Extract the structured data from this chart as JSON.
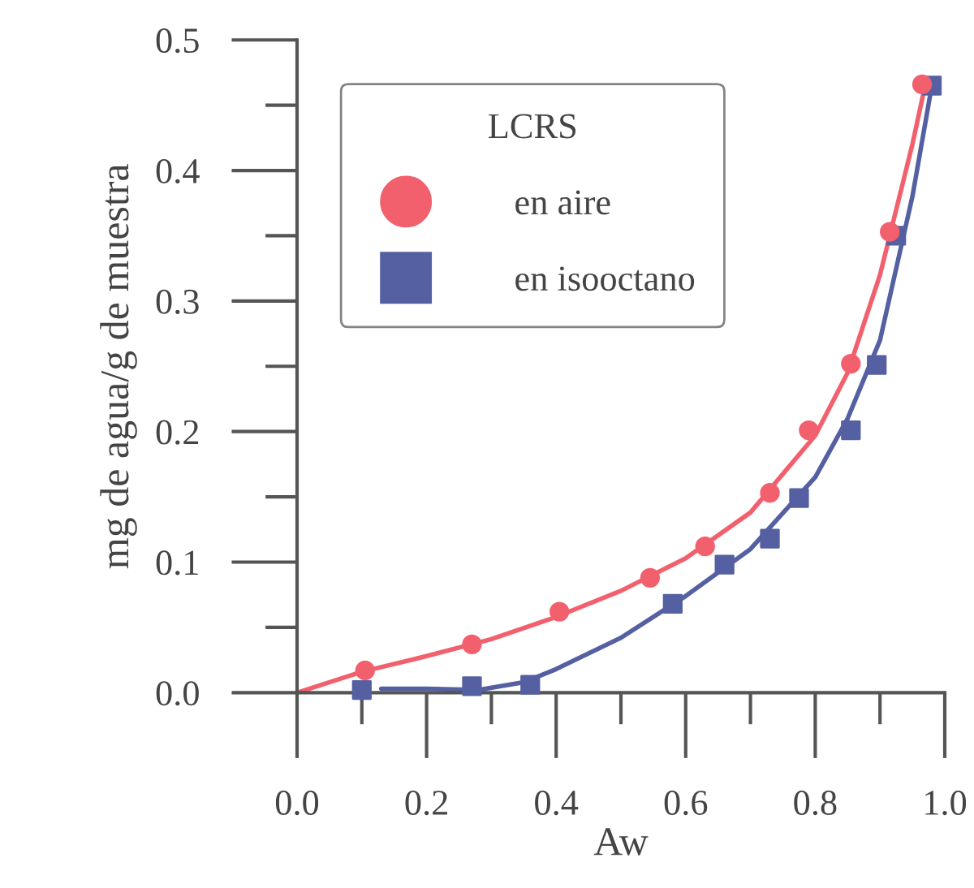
{
  "chart_data": {
    "type": "scatter",
    "xlabel": "Aw",
    "ylabel": "mg de agua/g de muestra",
    "legend_title": "LCRS",
    "xlim": [
      0,
      1
    ],
    "ylim": [
      0,
      0.5
    ],
    "xticks": [
      {
        "value": 0.0,
        "label": "0.0"
      },
      {
        "value": 0.2,
        "label": "0.2"
      },
      {
        "value": 0.4,
        "label": "0.4"
      },
      {
        "value": 0.6,
        "label": "0.6"
      },
      {
        "value": 0.8,
        "label": "0.8"
      },
      {
        "value": 1.0,
        "label": "1.0"
      }
    ],
    "yticks": [
      {
        "value": 0.0,
        "label": "0.0"
      },
      0.1,
      0.2,
      0.3,
      0.4,
      0.5
    ],
    "grid": false,
    "legend": "top left",
    "series": [
      {
        "name": "en aire",
        "marker": "circle",
        "color": "#f2606e",
        "x": [
          0.105,
          0.27,
          0.405,
          0.545,
          0.63,
          0.73,
          0.79,
          0.855,
          0.915,
          0.965
        ],
        "values": [
          0.017,
          0.037,
          0.062,
          0.088,
          0.112,
          0.153,
          0.201,
          0.252,
          0.353,
          0.466
        ]
      },
      {
        "name": "en isooctano",
        "marker": "square",
        "color": "#5560a2",
        "x": [
          0.1,
          0.27,
          0.36,
          0.58,
          0.66,
          0.73,
          0.775,
          0.855,
          0.895,
          0.925,
          0.98
        ],
        "values": [
          0.002,
          0.005,
          0.006,
          0.068,
          0.098,
          0.118,
          0.149,
          0.201,
          0.251,
          0.35,
          0.465
        ]
      },
      {
        "type": "line",
        "color": "#f2606e",
        "x": [
          0,
          0.1,
          0.2,
          0.3,
          0.4,
          0.5,
          0.6,
          0.7,
          0.8,
          0.85,
          0.9,
          0.95,
          0.97
        ],
        "values": [
          0,
          0.016,
          0.028,
          0.041,
          0.058,
          0.078,
          0.103,
          0.138,
          0.197,
          0.245,
          0.32,
          0.42,
          0.466
        ]
      },
      {
        "type": "line",
        "color": "#5560a2",
        "x": [
          0.13,
          0.2,
          0.28,
          0.35,
          0.4,
          0.5,
          0.6,
          0.7,
          0.8,
          0.85,
          0.9,
          0.95,
          0.98
        ],
        "values": [
          0.003,
          0.003,
          0.002,
          0.008,
          0.018,
          0.042,
          0.074,
          0.11,
          0.165,
          0.21,
          0.27,
          0.38,
          0.465
        ]
      }
    ]
  }
}
